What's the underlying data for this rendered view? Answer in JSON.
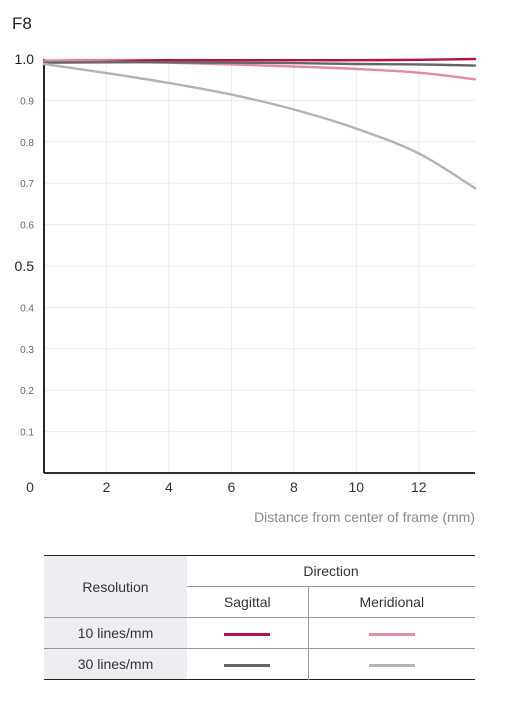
{
  "chart_data": {
    "type": "line",
    "title": "F8",
    "xlabel": "Distance from center of frame (mm)",
    "ylabel": "",
    "xlim": [
      0,
      13.8
    ],
    "ylim": [
      0,
      1.0
    ],
    "x_ticks": [
      2,
      4,
      6,
      8,
      10,
      12
    ],
    "x_origin_label": "0",
    "y_ticks": [
      {
        "value": 1.0,
        "label": "1.0",
        "major": true
      },
      {
        "value": 0.9,
        "label": "0.9",
        "major": false
      },
      {
        "value": 0.8,
        "label": "0.8",
        "major": false
      },
      {
        "value": 0.7,
        "label": "0.7",
        "major": false
      },
      {
        "value": 0.6,
        "label": "0.6",
        "major": false
      },
      {
        "value": 0.5,
        "label": "0.5",
        "major": true
      },
      {
        "value": 0.4,
        "label": "0.4",
        "major": false
      },
      {
        "value": 0.3,
        "label": "0.3",
        "major": false
      },
      {
        "value": 0.2,
        "label": "0.2",
        "major": false
      },
      {
        "value": 0.1,
        "label": "0.1",
        "major": false
      }
    ],
    "grid": true,
    "series": [
      {
        "key": "sag10",
        "color": "#b0124a",
        "x": [
          0,
          2,
          4,
          6,
          8,
          10,
          12,
          13.8
        ],
        "y": [
          0.996,
          0.996,
          0.997,
          0.997,
          0.997,
          0.997,
          0.998,
          1.0
        ]
      },
      {
        "key": "mer10",
        "color": "#e38aa3",
        "x": [
          0,
          2,
          4,
          6,
          8,
          10,
          12,
          13.8
        ],
        "y": [
          0.996,
          0.994,
          0.991,
          0.987,
          0.982,
          0.976,
          0.967,
          0.951
        ]
      },
      {
        "key": "sag30",
        "color": "#666666",
        "x": [
          0,
          2,
          4,
          6,
          8,
          10,
          12,
          13.8
        ],
        "y": [
          0.991,
          0.992,
          0.992,
          0.991,
          0.99,
          0.988,
          0.987,
          0.984
        ]
      },
      {
        "key": "mer30",
        "color": "#b3b3b3",
        "x": [
          0,
          2,
          4,
          6,
          8,
          10,
          12,
          13.8
        ],
        "y": [
          0.988,
          0.966,
          0.942,
          0.914,
          0.878,
          0.832,
          0.772,
          0.688
        ]
      }
    ]
  },
  "legend": {
    "resolution_header": "Resolution",
    "direction_header": "Direction",
    "sagittal_header": "Sagittal",
    "meridional_header": "Meridional",
    "rows": [
      {
        "label": "10 lines/mm",
        "sagittal_color": "#b0124a",
        "meridional_color": "#e38aa3"
      },
      {
        "label": "30 lines/mm",
        "sagittal_color": "#666666",
        "meridional_color": "#b3b3b3"
      }
    ]
  }
}
